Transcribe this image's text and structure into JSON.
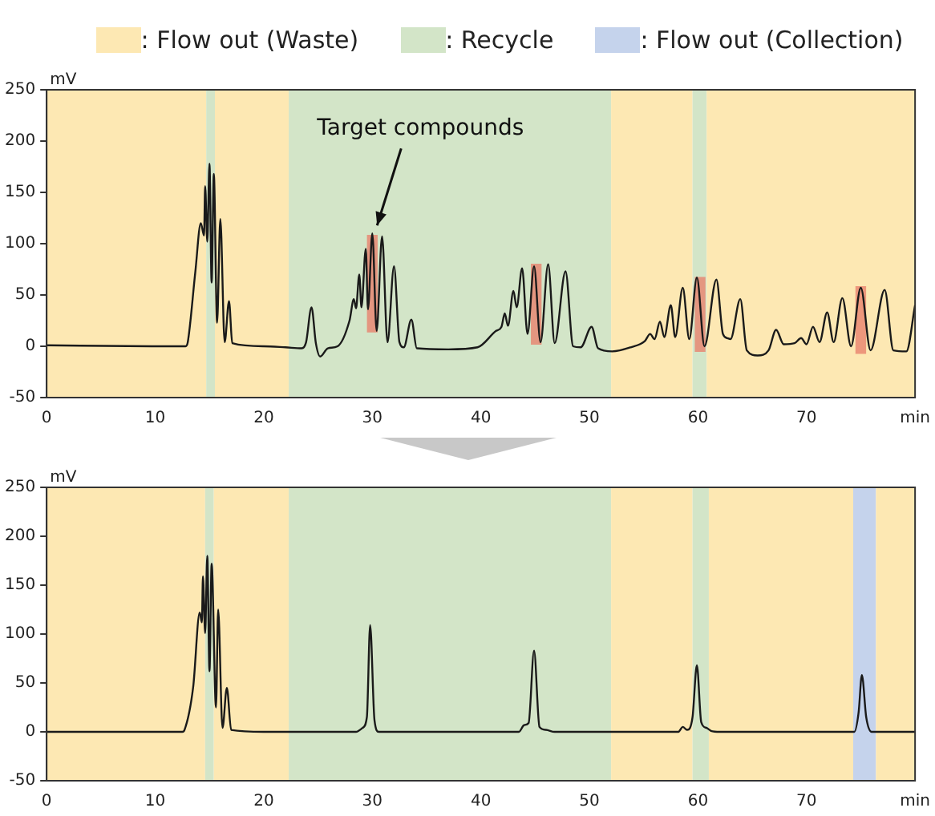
{
  "chart_data": [
    {
      "type": "line",
      "ylabel": "mV",
      "xlim": [
        0,
        80
      ],
      "ylim": [
        -50,
        250
      ],
      "xticks": [
        0,
        10,
        20,
        30,
        40,
        50,
        60,
        70,
        {
          "value": 80,
          "label": "min"
        }
      ],
      "yticks": [
        -50,
        0,
        50,
        100,
        150,
        200,
        250
      ],
      "grid": false,
      "marker": "none",
      "legend": "top",
      "annotations": [
        {
          "text": "Target compounds",
          "x": 30,
          "y": 110
        }
      ],
      "bands": [
        {
          "axis": "x",
          "from": 0,
          "to": 14.7,
          "label": ": Flow out (Waste)",
          "color": "#fde8b3"
        },
        {
          "axis": "x",
          "from": 14.7,
          "to": 15.5,
          "label": ": Recycle",
          "color": "#d3e5c8"
        },
        {
          "axis": "x",
          "from": 15.5,
          "to": 22.3,
          "color": "#fde8b3"
        },
        {
          "axis": "x",
          "from": 22.3,
          "to": 52,
          "color": "#d3e5c8"
        },
        {
          "axis": "x",
          "from": 52,
          "to": 59.5,
          "color": "#fde8b3"
        },
        {
          "axis": "x",
          "from": 59.5,
          "to": 60.8,
          "color": "#d3e5c8"
        },
        {
          "axis": "x",
          "from": 60.8,
          "to": 80,
          "color": "#fde8b3"
        }
      ],
      "series": [
        {
          "type": "bar",
          "color": "#e8826e",
          "x": [
            30,
            45.1,
            60.2,
            75
          ],
          "base": [
            14,
            2,
            -5,
            -7
          ],
          "values": [
            94,
            78,
            72,
            65
          ]
        },
        {
          "color": "#1a1a1a",
          "x": [
            0,
            10,
            12.8,
            13.0,
            13.7,
            14.2,
            14.5,
            14.6,
            14.8,
            15.0,
            15.2,
            15.4,
            15.7,
            16.0,
            16.4,
            16.8,
            17.1,
            20,
            22,
            23.5,
            23.9,
            24.4,
            24.8,
            25.2,
            25.9,
            26.8,
            27.9,
            28.3,
            28.5,
            28.8,
            29.0,
            29.4,
            29.6,
            30.0,
            30.4,
            30.9,
            31.4,
            32.0,
            32.5,
            32.9,
            33.6,
            34.1,
            37,
            39.7,
            41.4,
            41.9,
            42.2,
            42.5,
            43.0,
            43.3,
            43.8,
            44.3,
            44.9,
            45.5,
            46.2,
            46.8,
            47.8,
            48.5,
            49.2,
            50.2,
            50.8,
            52.1,
            53.8,
            55.1,
            55.6,
            56.0,
            56.5,
            56.9,
            57.5,
            57.9,
            58.6,
            59.2,
            59.9,
            60.6,
            61.7,
            62.3,
            62.7,
            63.0,
            63.9,
            64.5,
            65.5,
            66.5,
            67.2,
            67.9,
            68.9,
            69.5,
            70.0,
            70.6,
            71.2,
            71.9,
            72.5,
            73.3,
            74.1,
            75.0,
            75.9,
            77.2,
            78.0,
            79.2,
            80
          ],
          "values": [
            1,
            0,
            0,
            4,
            73,
            120,
            108,
            156,
            102,
            178,
            62,
            168,
            23,
            124,
            4,
            44,
            3,
            0,
            -1,
            -2,
            4,
            38,
            3,
            -10,
            -2,
            0,
            25,
            46,
            37,
            70,
            38,
            95,
            36,
            110,
            15,
            107,
            4,
            78,
            4,
            -1,
            26,
            -2,
            -3,
            -1,
            15,
            19,
            32,
            20,
            54,
            38,
            76,
            12,
            78,
            4,
            80,
            3,
            73,
            0,
            -1,
            19,
            -2,
            -5,
            -1,
            5,
            12,
            7,
            24,
            9,
            40,
            9,
            57,
            7,
            67,
            0,
            65,
            12,
            8,
            7,
            46,
            -4,
            -9,
            -4,
            16,
            2,
            3,
            8,
            2,
            19,
            4,
            33,
            4,
            47,
            0,
            57,
            -4,
            55,
            -4,
            -5,
            40
          ]
        }
      ]
    },
    {
      "type": "line",
      "ylabel": "mV",
      "xlim": [
        0,
        80
      ],
      "ylim": [
        -50,
        250
      ],
      "xticks": [
        0,
        10,
        20,
        30,
        40,
        50,
        60,
        70,
        {
          "value": 80,
          "label": "min"
        }
      ],
      "yticks": [
        -50,
        0,
        50,
        100,
        150,
        200,
        250
      ],
      "grid": false,
      "marker": "none",
      "bands": [
        {
          "axis": "x",
          "from": 0,
          "to": 14.6,
          "color": "#fde8b3"
        },
        {
          "axis": "x",
          "from": 14.6,
          "to": 15.4,
          "color": "#d3e5c8"
        },
        {
          "axis": "x",
          "from": 15.4,
          "to": 22.3,
          "color": "#fde8b3"
        },
        {
          "axis": "x",
          "from": 22.3,
          "to": 52,
          "color": "#d3e5c8"
        },
        {
          "axis": "x",
          "from": 52,
          "to": 59.5,
          "color": "#fde8b3"
        },
        {
          "axis": "x",
          "from": 59.5,
          "to": 61,
          "color": "#d3e5c8"
        },
        {
          "axis": "x",
          "from": 61,
          "to": 74.3,
          "color": "#fde8b3"
        },
        {
          "axis": "x",
          "from": 74.3,
          "to": 76.4,
          "label": ": Flow out (Collection)",
          "color": "#c5d3ec"
        },
        {
          "axis": "x",
          "from": 76.4,
          "to": 80,
          "color": "#fde8b3"
        }
      ],
      "series": [
        {
          "color": "#1a1a1a",
          "x": [
            0,
            12.5,
            12.7,
            13.5,
            14.1,
            14.3,
            14.4,
            14.6,
            14.8,
            15.0,
            15.2,
            15.6,
            15.8,
            16.2,
            16.6,
            17.0,
            20,
            28.5,
            29.1,
            29.5,
            29.8,
            30.2,
            30.6,
            43.5,
            44.0,
            44.4,
            44.9,
            45.4,
            46.0,
            46.8,
            58.2,
            58.6,
            59.0,
            59.5,
            59.9,
            60.3,
            60.8,
            61.2,
            62,
            74.4,
            74.8,
            75.1,
            75.5,
            76,
            80
          ],
          "values": [
            0,
            0,
            2,
            46,
            122,
            112,
            159,
            101,
            180,
            62,
            172,
            25,
            125,
            4,
            45,
            2,
            0,
            0,
            4,
            15,
            109,
            12,
            0,
            0,
            7,
            9,
            83,
            5,
            2,
            0,
            0,
            5,
            2,
            15,
            68,
            10,
            4,
            1,
            0,
            0,
            20,
            58,
            15,
            0,
            0
          ]
        }
      ]
    }
  ]
}
